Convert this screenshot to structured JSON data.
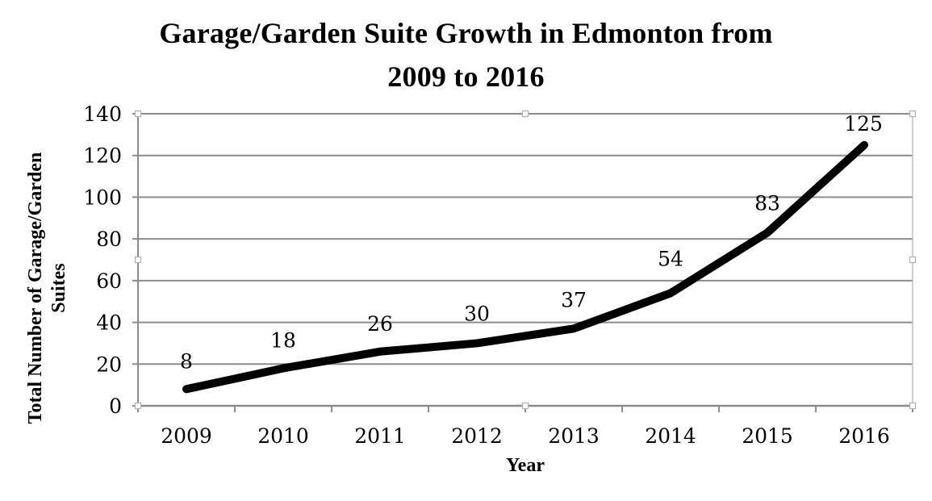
{
  "chart": {
    "title_line1": "Garage/Garden Suite Growth in Edmonton from",
    "title_line2": "2009 to 2016",
    "ylabel_line1": "Total Number of Garage/Garden",
    "ylabel_line2": "Suites",
    "xlabel": "Year",
    "line_color": "#000000",
    "grid_color": "#8c8c8c"
  },
  "chart_data": {
    "type": "line",
    "title": "Garage/Garden Suite Growth in Edmonton from 2009 to 2016",
    "xlabel": "Year",
    "ylabel": "Total Number of Garage/Garden Suites",
    "categories": [
      "2009",
      "2010",
      "2011",
      "2012",
      "2013",
      "2014",
      "2015",
      "2016"
    ],
    "series": [
      {
        "name": "Garage/Garden Suites",
        "values": [
          8,
          18,
          26,
          30,
          37,
          54,
          83,
          125
        ]
      }
    ],
    "data_labels": [
      "8",
      "18",
      "26",
      "30",
      "37",
      "54",
      "83",
      "125"
    ],
    "yticks": [
      "0",
      "20",
      "40",
      "60",
      "80",
      "100",
      "120",
      "140"
    ],
    "ylim": [
      0,
      140
    ],
    "grid": "horizontal",
    "legend": "none"
  }
}
